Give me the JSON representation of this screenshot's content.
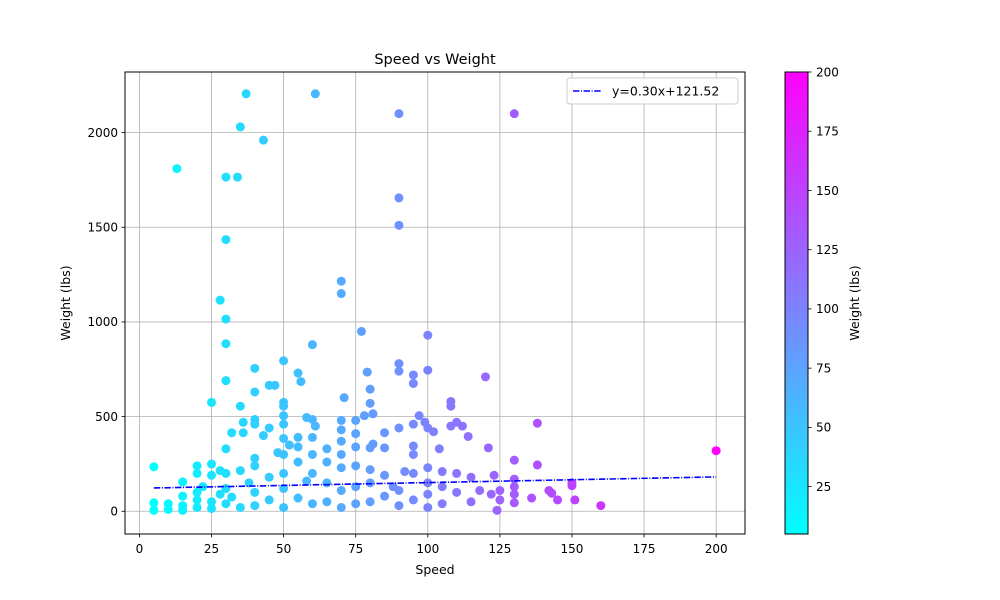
{
  "chart_data": {
    "type": "scatter",
    "title": "Speed vs Weight",
    "xlabel": "Speed",
    "ylabel": "Weight (lbs)",
    "xlim": [
      -5,
      210
    ],
    "ylim": [
      -120,
      2320
    ],
    "xticks": [
      0,
      25,
      50,
      75,
      100,
      125,
      150,
      175,
      200
    ],
    "yticks": [
      0,
      500,
      1000,
      1500,
      2000
    ],
    "grid": true,
    "legend": {
      "position": "top-right",
      "entries": [
        "y=0.30x+121.52"
      ]
    },
    "trendline": {
      "label": "y=0.30x+121.52",
      "slope": 0.3,
      "intercept": 121.52,
      "x_range": [
        5,
        200
      ],
      "color": "#0000ff",
      "style": "dash-dot"
    },
    "colorbar": {
      "label": "Weight (lbs)",
      "range": [
        5,
        200
      ],
      "ticks": [
        25,
        50,
        75,
        100,
        125,
        150,
        175,
        200
      ],
      "colormap": "cool",
      "start_color": "#00ffff",
      "end_color": "#ff00ff"
    },
    "points": [
      {
        "x": 5,
        "y": 235
      },
      {
        "x": 5,
        "y": 45
      },
      {
        "x": 5,
        "y": 5
      },
      {
        "x": 10,
        "y": 40
      },
      {
        "x": 10,
        "y": 10
      },
      {
        "x": 13,
        "y": 1810
      },
      {
        "x": 15,
        "y": 155
      },
      {
        "x": 15,
        "y": 80
      },
      {
        "x": 15,
        "y": 30
      },
      {
        "x": 15,
        "y": 5
      },
      {
        "x": 20,
        "y": 240
      },
      {
        "x": 20,
        "y": 200
      },
      {
        "x": 20,
        "y": 100
      },
      {
        "x": 20,
        "y": 60
      },
      {
        "x": 20,
        "y": 20
      },
      {
        "x": 22,
        "y": 130
      },
      {
        "x": 25,
        "y": 575
      },
      {
        "x": 25,
        "y": 250
      },
      {
        "x": 25,
        "y": 190
      },
      {
        "x": 25,
        "y": 50
      },
      {
        "x": 25,
        "y": 15
      },
      {
        "x": 28,
        "y": 1115
      },
      {
        "x": 28,
        "y": 215
      },
      {
        "x": 28,
        "y": 90
      },
      {
        "x": 30,
        "y": 1765
      },
      {
        "x": 30,
        "y": 1435
      },
      {
        "x": 30,
        "y": 1015
      },
      {
        "x": 30,
        "y": 885
      },
      {
        "x": 30,
        "y": 690
      },
      {
        "x": 30,
        "y": 330
      },
      {
        "x": 30,
        "y": 200
      },
      {
        "x": 30,
        "y": 120
      },
      {
        "x": 30,
        "y": 40
      },
      {
        "x": 32,
        "y": 415
      },
      {
        "x": 32,
        "y": 75
      },
      {
        "x": 34,
        "y": 1765
      },
      {
        "x": 35,
        "y": 2030
      },
      {
        "x": 35,
        "y": 555
      },
      {
        "x": 35,
        "y": 215
      },
      {
        "x": 35,
        "y": 20
      },
      {
        "x": 36,
        "y": 470
      },
      {
        "x": 36,
        "y": 415
      },
      {
        "x": 37,
        "y": 2205
      },
      {
        "x": 38,
        "y": 150
      },
      {
        "x": 40,
        "y": 755
      },
      {
        "x": 40,
        "y": 630
      },
      {
        "x": 40,
        "y": 485
      },
      {
        "x": 40,
        "y": 460
      },
      {
        "x": 40,
        "y": 280
      },
      {
        "x": 40,
        "y": 240
      },
      {
        "x": 40,
        "y": 100
      },
      {
        "x": 40,
        "y": 30
      },
      {
        "x": 43,
        "y": 1960
      },
      {
        "x": 43,
        "y": 400
      },
      {
        "x": 45,
        "y": 665
      },
      {
        "x": 45,
        "y": 440
      },
      {
        "x": 45,
        "y": 180
      },
      {
        "x": 45,
        "y": 60
      },
      {
        "x": 47,
        "y": 665
      },
      {
        "x": 48,
        "y": 310
      },
      {
        "x": 50,
        "y": 795
      },
      {
        "x": 50,
        "y": 575
      },
      {
        "x": 50,
        "y": 555
      },
      {
        "x": 50,
        "y": 505
      },
      {
        "x": 50,
        "y": 460
      },
      {
        "x": 50,
        "y": 385
      },
      {
        "x": 50,
        "y": 300
      },
      {
        "x": 50,
        "y": 200
      },
      {
        "x": 50,
        "y": 120
      },
      {
        "x": 50,
        "y": 20
      },
      {
        "x": 52,
        "y": 350
      },
      {
        "x": 55,
        "y": 730
      },
      {
        "x": 55,
        "y": 390
      },
      {
        "x": 55,
        "y": 340
      },
      {
        "x": 55,
        "y": 260
      },
      {
        "x": 55,
        "y": 70
      },
      {
        "x": 56,
        "y": 685
      },
      {
        "x": 58,
        "y": 495
      },
      {
        "x": 58,
        "y": 160
      },
      {
        "x": 60,
        "y": 880
      },
      {
        "x": 60,
        "y": 485
      },
      {
        "x": 60,
        "y": 390
      },
      {
        "x": 60,
        "y": 300
      },
      {
        "x": 60,
        "y": 200
      },
      {
        "x": 60,
        "y": 40
      },
      {
        "x": 61,
        "y": 2205
      },
      {
        "x": 61,
        "y": 450
      },
      {
        "x": 65,
        "y": 330
      },
      {
        "x": 65,
        "y": 260
      },
      {
        "x": 65,
        "y": 150
      },
      {
        "x": 65,
        "y": 50
      },
      {
        "x": 70,
        "y": 1215
      },
      {
        "x": 70,
        "y": 1150
      },
      {
        "x": 70,
        "y": 480
      },
      {
        "x": 70,
        "y": 430
      },
      {
        "x": 70,
        "y": 370
      },
      {
        "x": 70,
        "y": 300
      },
      {
        "x": 70,
        "y": 230
      },
      {
        "x": 70,
        "y": 110
      },
      {
        "x": 70,
        "y": 20
      },
      {
        "x": 71,
        "y": 600
      },
      {
        "x": 75,
        "y": 480
      },
      {
        "x": 75,
        "y": 410
      },
      {
        "x": 75,
        "y": 340
      },
      {
        "x": 75,
        "y": 240
      },
      {
        "x": 75,
        "y": 130
      },
      {
        "x": 75,
        "y": 40
      },
      {
        "x": 77,
        "y": 950
      },
      {
        "x": 78,
        "y": 505
      },
      {
        "x": 79,
        "y": 735
      },
      {
        "x": 80,
        "y": 645
      },
      {
        "x": 80,
        "y": 570
      },
      {
        "x": 80,
        "y": 335
      },
      {
        "x": 80,
        "y": 220
      },
      {
        "x": 80,
        "y": 150
      },
      {
        "x": 80,
        "y": 50
      },
      {
        "x": 81,
        "y": 515
      },
      {
        "x": 81,
        "y": 355
      },
      {
        "x": 85,
        "y": 415
      },
      {
        "x": 85,
        "y": 335
      },
      {
        "x": 85,
        "y": 190
      },
      {
        "x": 85,
        "y": 80
      },
      {
        "x": 88,
        "y": 130
      },
      {
        "x": 90,
        "y": 2100
      },
      {
        "x": 90,
        "y": 1655
      },
      {
        "x": 90,
        "y": 1510
      },
      {
        "x": 90,
        "y": 780
      },
      {
        "x": 90,
        "y": 740
      },
      {
        "x": 90,
        "y": 440
      },
      {
        "x": 90,
        "y": 110
      },
      {
        "x": 90,
        "y": 30
      },
      {
        "x": 92,
        "y": 210
      },
      {
        "x": 95,
        "y": 720
      },
      {
        "x": 95,
        "y": 675
      },
      {
        "x": 95,
        "y": 460
      },
      {
        "x": 95,
        "y": 345
      },
      {
        "x": 95,
        "y": 300
      },
      {
        "x": 95,
        "y": 200
      },
      {
        "x": 95,
        "y": 60
      },
      {
        "x": 97,
        "y": 505
      },
      {
        "x": 99,
        "y": 470
      },
      {
        "x": 100,
        "y": 930
      },
      {
        "x": 100,
        "y": 745
      },
      {
        "x": 100,
        "y": 440
      },
      {
        "x": 100,
        "y": 230
      },
      {
        "x": 100,
        "y": 150
      },
      {
        "x": 100,
        "y": 90
      },
      {
        "x": 100,
        "y": 20
      },
      {
        "x": 102,
        "y": 420
      },
      {
        "x": 104,
        "y": 330
      },
      {
        "x": 105,
        "y": 210
      },
      {
        "x": 105,
        "y": 130
      },
      {
        "x": 105,
        "y": 40
      },
      {
        "x": 108,
        "y": 580
      },
      {
        "x": 108,
        "y": 555
      },
      {
        "x": 108,
        "y": 450
      },
      {
        "x": 110,
        "y": 470
      },
      {
        "x": 110,
        "y": 200
      },
      {
        "x": 110,
        "y": 100
      },
      {
        "x": 112,
        "y": 450
      },
      {
        "x": 114,
        "y": 395
      },
      {
        "x": 115,
        "y": 180
      },
      {
        "x": 115,
        "y": 50
      },
      {
        "x": 118,
        "y": 110
      },
      {
        "x": 120,
        "y": 710
      },
      {
        "x": 121,
        "y": 335
      },
      {
        "x": 122,
        "y": 90
      },
      {
        "x": 123,
        "y": 190
      },
      {
        "x": 124,
        "y": 5
      },
      {
        "x": 125,
        "y": 110
      },
      {
        "x": 125,
        "y": 60
      },
      {
        "x": 130,
        "y": 2100
      },
      {
        "x": 130,
        "y": 270
      },
      {
        "x": 130,
        "y": 170
      },
      {
        "x": 130,
        "y": 130
      },
      {
        "x": 130,
        "y": 90
      },
      {
        "x": 130,
        "y": 45
      },
      {
        "x": 136,
        "y": 70
      },
      {
        "x": 138,
        "y": 465
      },
      {
        "x": 138,
        "y": 245
      },
      {
        "x": 142,
        "y": 110
      },
      {
        "x": 143,
        "y": 95
      },
      {
        "x": 145,
        "y": 60
      },
      {
        "x": 150,
        "y": 150
      },
      {
        "x": 150,
        "y": 135
      },
      {
        "x": 151,
        "y": 60
      },
      {
        "x": 160,
        "y": 30
      },
      {
        "x": 200,
        "y": 320
      }
    ]
  }
}
